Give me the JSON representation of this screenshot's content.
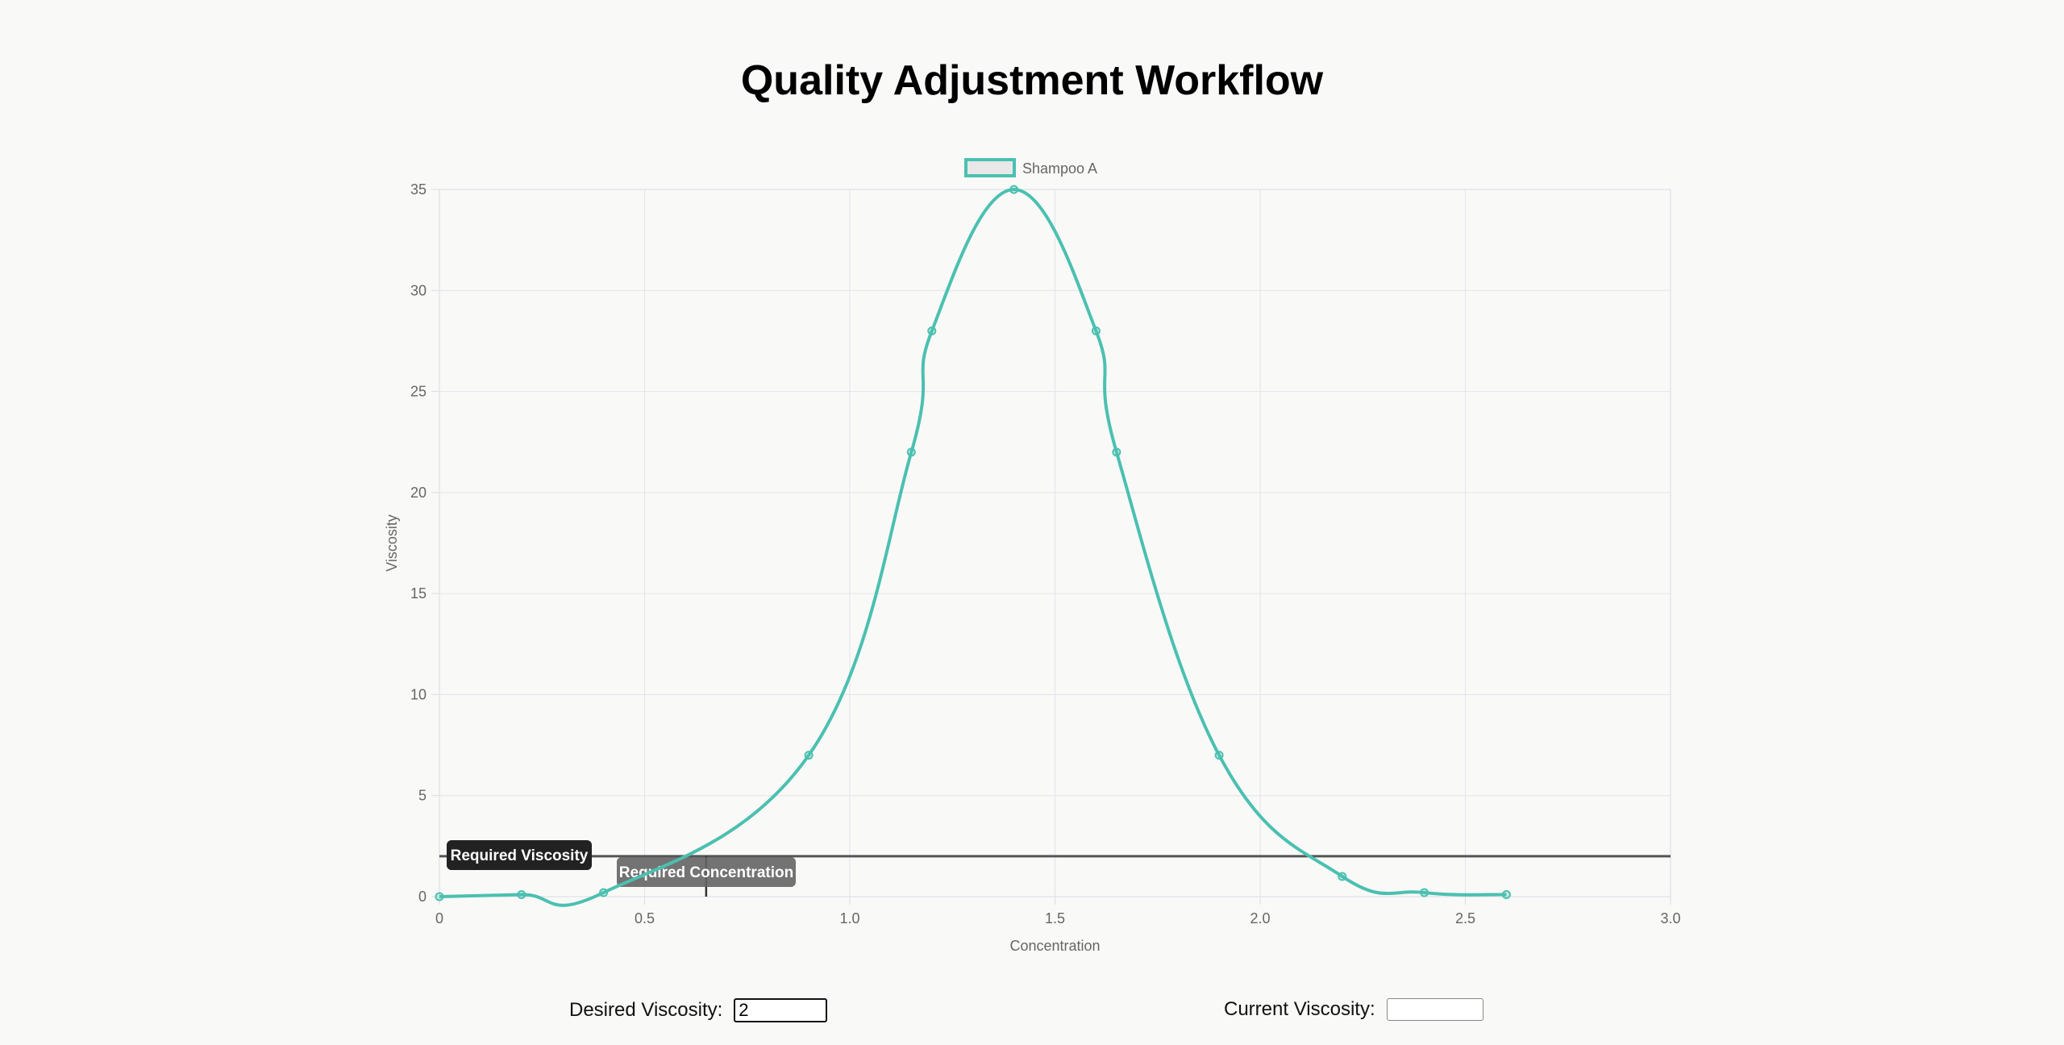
{
  "page": {
    "title": "Quality Adjustment Workflow"
  },
  "controls": {
    "desired_label": "Desired Viscosity:",
    "desired_value": "2",
    "current_label": "Current Viscosity:",
    "current_value": ""
  },
  "chart_data": {
    "type": "line",
    "xlabel": "Concentration",
    "ylabel": "Viscosity",
    "xlim": [
      0,
      3
    ],
    "ylim": [
      0,
      35
    ],
    "x_ticks": [
      "0",
      "0.5",
      "1.0",
      "1.5",
      "2.0",
      "2.5",
      "3.0"
    ],
    "y_ticks": [
      "0",
      "5",
      "10",
      "15",
      "20",
      "25",
      "30",
      "35"
    ],
    "grid": true,
    "legend_position": "top-center",
    "series": [
      {
        "name": "Shampoo A",
        "color": "#4bc0b0",
        "points": [
          {
            "x": 0,
            "y": 0
          },
          {
            "x": 0.2,
            "y": 0.1
          },
          {
            "x": 0.4,
            "y": 0.2
          },
          {
            "x": 0.9,
            "y": 7
          },
          {
            "x": 1.15,
            "y": 22
          },
          {
            "x": 1.2,
            "y": 28
          },
          {
            "x": 1.4,
            "y": 35
          },
          {
            "x": 1.6,
            "y": 28
          },
          {
            "x": 1.65,
            "y": 22
          },
          {
            "x": 1.9,
            "y": 7
          },
          {
            "x": 2.2,
            "y": 1
          },
          {
            "x": 2.4,
            "y": 0.2
          },
          {
            "x": 2.6,
            "y": 0.1
          }
        ]
      }
    ],
    "annotations": {
      "required_viscosity": {
        "label": "Required Viscosity",
        "y": 2
      },
      "required_concentration": {
        "label": "Required Concentration",
        "x": 0.65
      }
    }
  }
}
